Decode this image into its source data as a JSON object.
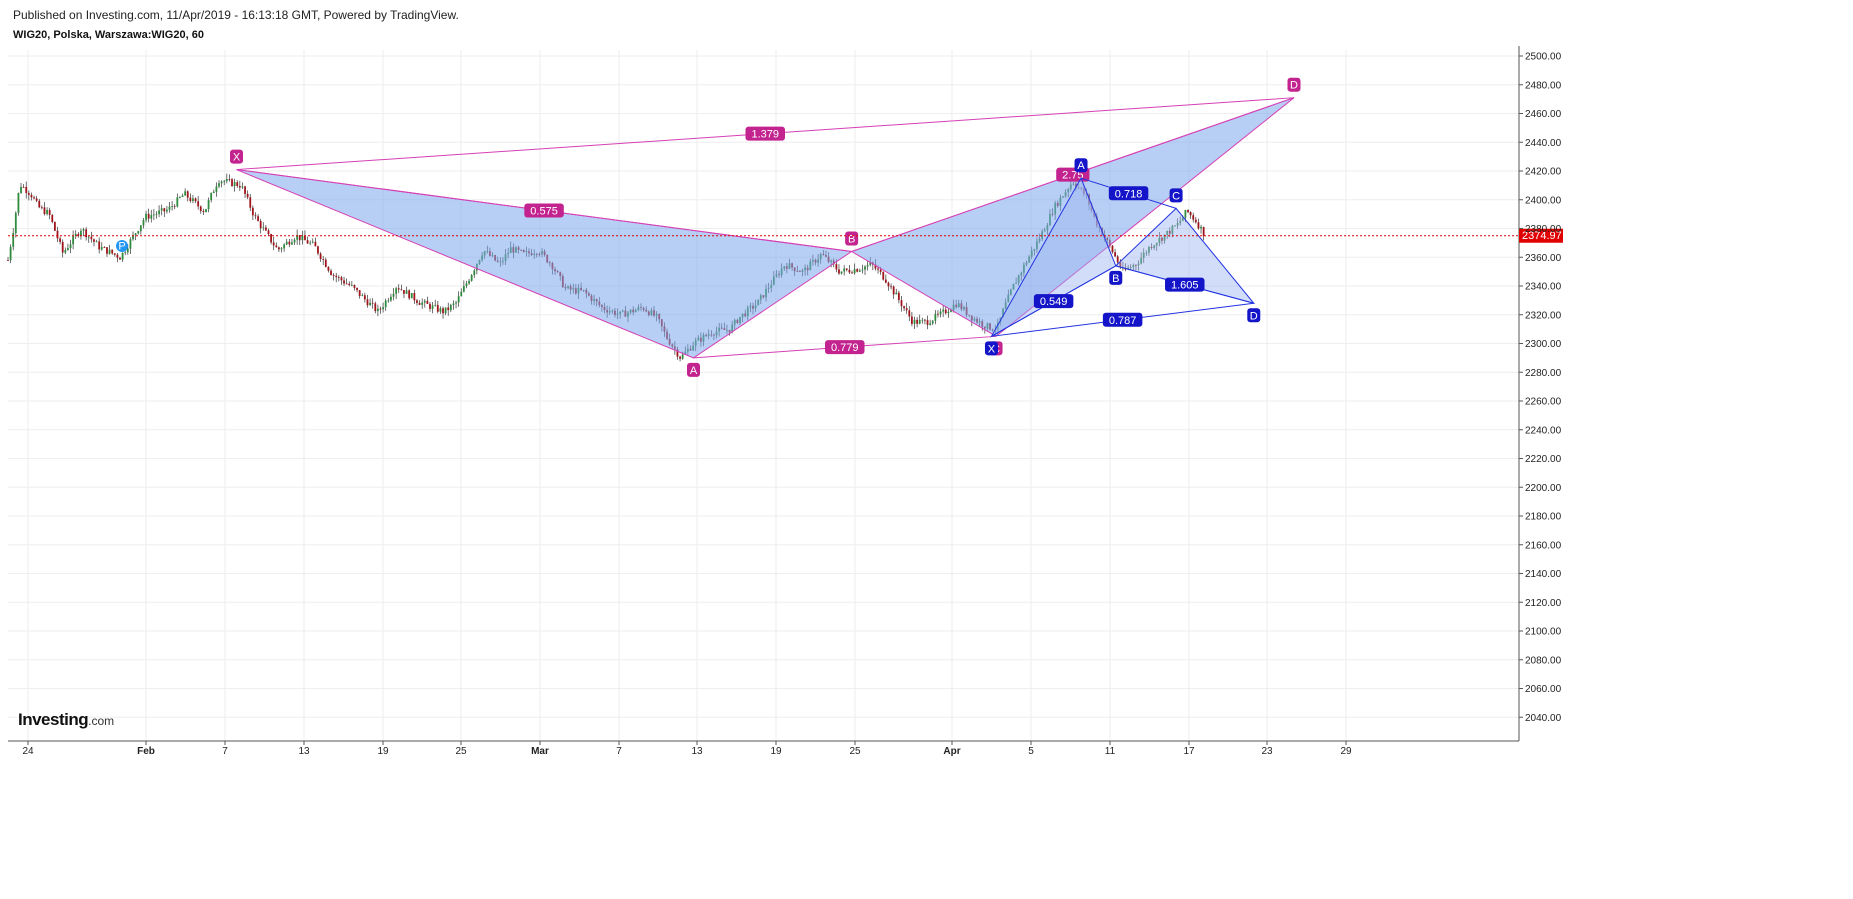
{
  "header": {
    "published": "Published on Investing.com, 11/Apr/2019 - 16:13:18 GMT, Powered by TradingView.",
    "symbol": "WIG20, Polska, Warszawa:WIG20, 60"
  },
  "logo": {
    "main": "Investing",
    "suffix": ".com"
  },
  "colors": {
    "up": "#2e8b3e",
    "down": "#a0151b",
    "pattern1_fill": "#7ea7ec",
    "pattern1_line": "#d63fb5",
    "pattern1_label": "#c2238e",
    "pattern2_fill": "#9bb4f2",
    "pattern2_line": "#2233e0",
    "pattern2_label": "#1414c8",
    "last_price": "#e00000",
    "grid": "#eeeeee"
  },
  "chart_data": {
    "type": "candlestick",
    "interval": "60",
    "last_price": 2374.97,
    "last_price_label": "2374.97",
    "y_ticks": [
      "2500.00",
      "2480.00",
      "2460.00",
      "2440.00",
      "2420.00",
      "2400.00",
      "2380.00",
      "2360.00",
      "2340.00",
      "2320.00",
      "2300.00",
      "2280.00",
      "2260.00",
      "2240.00",
      "2220.00",
      "2200.00",
      "2180.00",
      "2160.00",
      "2140.00",
      "2120.00",
      "2100.00",
      "2080.00",
      "2060.00",
      "2040.00"
    ],
    "ylim": [
      2028,
      2502
    ],
    "x_ticks": [
      {
        "label": "24",
        "bold": false
      },
      {
        "label": "Feb",
        "bold": true
      },
      {
        "label": "7",
        "bold": false
      },
      {
        "label": "13",
        "bold": false
      },
      {
        "label": "19",
        "bold": false
      },
      {
        "label": "25",
        "bold": false
      },
      {
        "label": "Mar",
        "bold": true
      },
      {
        "label": "7",
        "bold": false
      },
      {
        "label": "13",
        "bold": false
      },
      {
        "label": "19",
        "bold": false
      },
      {
        "label": "25",
        "bold": false
      },
      {
        "label": "Apr",
        "bold": true
      },
      {
        "label": "5",
        "bold": false
      },
      {
        "label": "11",
        "bold": false
      },
      {
        "label": "17",
        "bold": false
      },
      {
        "label": "23",
        "bold": false
      },
      {
        "label": "29",
        "bold": false
      }
    ],
    "price_path": [
      [
        0,
        2358
      ],
      [
        0.6,
        2380
      ],
      [
        1.3,
        2411
      ],
      [
        2.5,
        2404
      ],
      [
        3.3,
        2395
      ],
      [
        4.5,
        2390
      ],
      [
        6,
        2363
      ],
      [
        8,
        2380
      ],
      [
        10,
        2367
      ],
      [
        12.3,
        2360
      ],
      [
        15,
        2388
      ],
      [
        17.5,
        2393
      ],
      [
        19.3,
        2404
      ],
      [
        21.5,
        2392
      ],
      [
        23,
        2414
      ],
      [
        25.5,
        2410
      ],
      [
        27,
        2388
      ],
      [
        29.5,
        2365
      ],
      [
        31.5,
        2375
      ],
      [
        33.5,
        2368
      ],
      [
        35.5,
        2348
      ],
      [
        37.5,
        2340
      ],
      [
        40.5,
        2322
      ],
      [
        42.5,
        2340
      ],
      [
        45,
        2329
      ],
      [
        47.7,
        2322
      ],
      [
        49,
        2328
      ],
      [
        50.5,
        2346
      ],
      [
        52,
        2365
      ],
      [
        53.8,
        2355
      ],
      [
        55,
        2366
      ],
      [
        56.5,
        2362
      ],
      [
        58,
        2365
      ],
      [
        59.5,
        2355
      ],
      [
        61,
        2338
      ],
      [
        63,
        2336
      ],
      [
        65,
        2325
      ],
      [
        67,
        2320
      ],
      [
        69.5,
        2325
      ],
      [
        71,
        2318
      ],
      [
        72,
        2305
      ],
      [
        73.6,
        2290
      ],
      [
        75,
        2300
      ],
      [
        77,
        2308
      ],
      [
        79,
        2310
      ],
      [
        80,
        2318
      ],
      [
        82,
        2328
      ],
      [
        83.5,
        2342
      ],
      [
        85,
        2355
      ],
      [
        87,
        2350
      ],
      [
        89,
        2362
      ],
      [
        91,
        2350
      ],
      [
        93,
        2352
      ],
      [
        94.5,
        2355
      ],
      [
        96,
        2345
      ],
      [
        97.5,
        2330
      ],
      [
        99,
        2315
      ],
      [
        100.5,
        2315
      ],
      [
        102,
        2320
      ],
      [
        103.8,
        2328
      ],
      [
        105.5,
        2318
      ],
      [
        107,
        2312
      ],
      [
        108.2,
        2310
      ],
      [
        109,
        2325
      ],
      [
        110,
        2340
      ],
      [
        111.5,
        2358
      ],
      [
        113,
        2375
      ],
      [
        114.5,
        2395
      ],
      [
        116.5,
        2413
      ],
      [
        118,
        2402
      ],
      [
        119,
        2385
      ],
      [
        120.5,
        2368
      ],
      [
        122,
        2350
      ],
      [
        123.5,
        2356
      ],
      [
        125,
        2368
      ],
      [
        126.5,
        2375
      ],
      [
        128,
        2383
      ],
      [
        129,
        2392
      ],
      [
        130,
        2385
      ],
      [
        131,
        2375
      ]
    ],
    "patterns": [
      {
        "name": "pattern-1",
        "color": "pink",
        "points": [
          {
            "label": "X",
            "x": 25,
            "y": 2421
          },
          {
            "label": "A",
            "x": 75,
            "y": 2290
          },
          {
            "label": "B",
            "x": 92.3,
            "y": 2364
          },
          {
            "label": "C",
            "x": 108.1,
            "y": 2305
          },
          {
            "label": "D",
            "x": 140.7,
            "y": 2471
          }
        ],
        "ratios": [
          {
            "text": "0.575",
            "between": [
              "X",
              "B"
            ]
          },
          {
            "text": "0.779",
            "between": [
              "A",
              "C"
            ]
          },
          {
            "text": "2.75",
            "between": [
              "B",
              "D"
            ]
          },
          {
            "text": "1.379",
            "between": [
              "X",
              "D"
            ]
          }
        ]
      },
      {
        "name": "pattern-2",
        "color": "blue",
        "points": [
          {
            "label": "X",
            "x": 107.6,
            "y": 2305
          },
          {
            "label": "A",
            "x": 117.4,
            "y": 2415
          },
          {
            "label": "B",
            "x": 121.2,
            "y": 2354
          },
          {
            "label": "C",
            "x": 127.8,
            "y": 2394
          },
          {
            "label": "D",
            "x": 136.3,
            "y": 2328
          }
        ],
        "ratios": [
          {
            "text": "0.549",
            "between": [
              "X",
              "B"
            ]
          },
          {
            "text": "0.718",
            "between": [
              "A",
              "C"
            ]
          },
          {
            "text": "1.605",
            "between": [
              "B",
              "D"
            ]
          },
          {
            "text": "0.787",
            "between": [
              "X",
              "D"
            ]
          }
        ]
      }
    ]
  }
}
